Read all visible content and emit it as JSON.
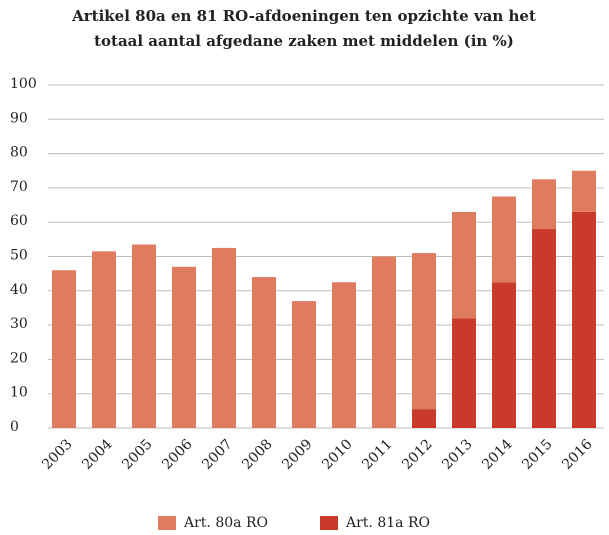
{
  "chart_data": {
    "type": "stacked_bar",
    "title": [
      "Artikel 80a en 81 RO-afdoeningen ten opzichte van het",
      "totaal aantal afgedane zaken met middelen (in %)"
    ],
    "categories": [
      "2003",
      "2004",
      "2005",
      "2006",
      "2007",
      "2008",
      "2009",
      "2010",
      "2011",
      "2012",
      "2013",
      "2014",
      "2015",
      "2016"
    ],
    "series": [
      {
        "name": "Art. 80a RO",
        "color": "#e07b60",
        "values": [
          46,
          51.5,
          53.5,
          47,
          52.5,
          44,
          37,
          42.5,
          50,
          45.5,
          31,
          25,
          14.5,
          12
        ]
      },
      {
        "name": "Art. 81a RO",
        "color": "#c93a2a",
        "values": [
          0,
          0,
          0,
          0,
          0,
          0,
          0,
          0,
          0,
          5.5,
          32,
          42.5,
          58,
          63
        ]
      }
    ],
    "ylim": [
      0,
      100
    ],
    "yticks": [
      0,
      10,
      20,
      30,
      40,
      50,
      60,
      70,
      80,
      90,
      100
    ],
    "grid": true,
    "legend": "bottom"
  }
}
